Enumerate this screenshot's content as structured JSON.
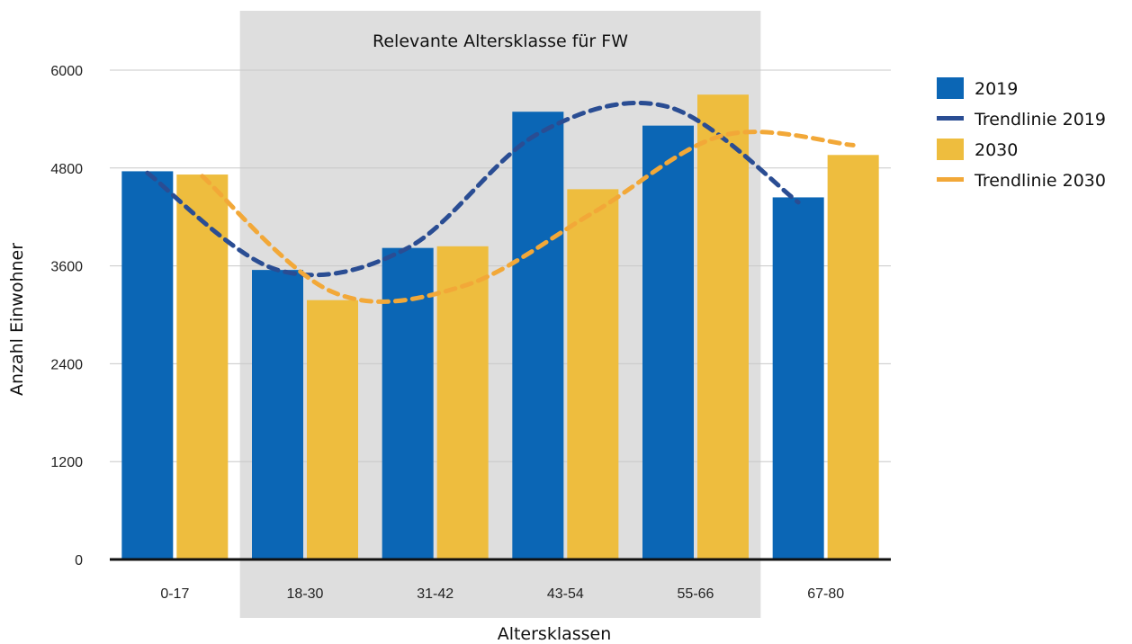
{
  "chart_data": {
    "type": "bar",
    "title": "",
    "xlabel": "Altersklassen",
    "ylabel": "Anzahl Einwohner",
    "ylim": [
      0,
      6000
    ],
    "yticks": [
      0,
      1200,
      2400,
      3600,
      4800,
      6000
    ],
    "ytick_labels": [
      "0",
      "1200",
      "2400",
      "3600",
      "4800",
      "6000"
    ],
    "categories": [
      "0-17",
      "18-30",
      "31-42",
      "43-54",
      "55-66",
      "67-80"
    ],
    "series": [
      {
        "name": "2019",
        "values": [
          4760,
          3550,
          3820,
          5490,
          5320,
          4440
        ],
        "color": "#0b66b5"
      },
      {
        "name": "2030",
        "values": [
          4720,
          3180,
          3840,
          4540,
          5700,
          4960
        ],
        "color": "#eebd3e"
      }
    ],
    "trendlines": [
      {
        "name": "Trendlinie 2019",
        "of_series": "2019",
        "style": "dashed",
        "color": "#2a4d93",
        "values": [
          4740,
          3550,
          3820,
          5220,
          5550,
          4380
        ]
      },
      {
        "name": "Trendlinie 2030",
        "of_series": "2030",
        "style": "dashed",
        "color": "#f2a838",
        "values": [
          4700,
          3280,
          3350,
          4250,
          5200,
          5080
        ]
      }
    ],
    "highlight_band": {
      "label": "Relevante Altersklasse für FW",
      "from_category": "18-30",
      "to_category": "55-66",
      "color": "#dedede"
    },
    "grid": true,
    "legend": {
      "position": "right",
      "items": [
        {
          "label": "2019",
          "kind": "box",
          "color": "#0b66b5"
        },
        {
          "label": "Trendlinie 2019",
          "kind": "line",
          "color": "#2a4d93"
        },
        {
          "label": "2030",
          "kind": "box",
          "color": "#eebd3e"
        },
        {
          "label": "Trendlinie 2030",
          "kind": "line",
          "color": "#f2a838"
        }
      ]
    }
  }
}
